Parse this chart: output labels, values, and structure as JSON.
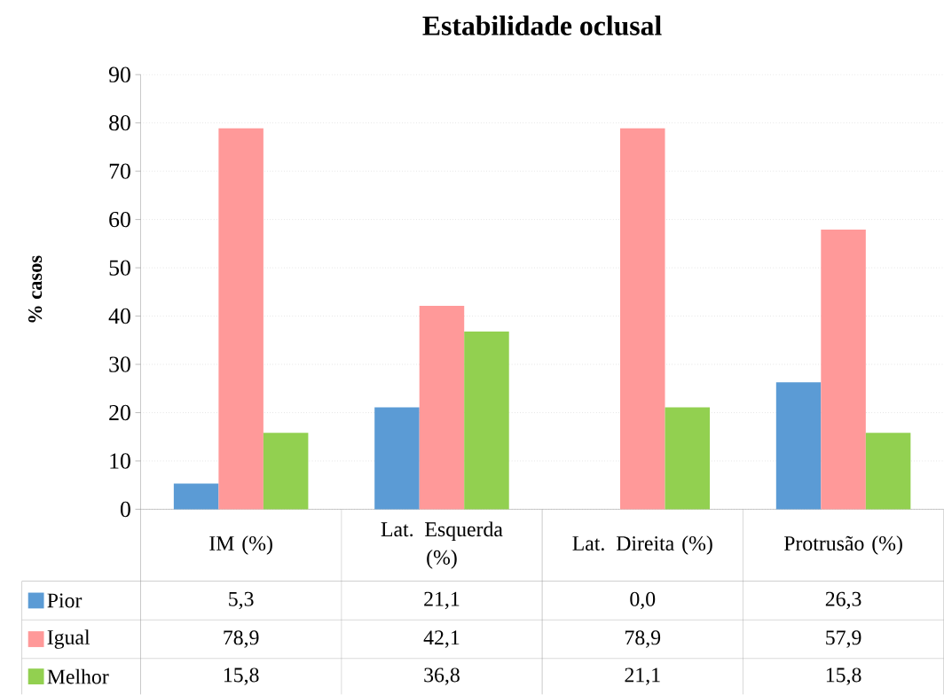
{
  "chart_data": {
    "type": "bar",
    "title": "Estabilidade oclusal",
    "ylabel": "% casos",
    "categories": [
      "IM (%)",
      "Lat. Esquerda (%)",
      "Lat. Direita (%)",
      "Protrusão (%)"
    ],
    "series": [
      {
        "name": "Pior",
        "color": "#5b9bd5",
        "values": [
          5.3,
          21.1,
          0.0,
          26.3
        ],
        "value_labels": [
          "5,3",
          "21,1",
          "0,0",
          "26,3"
        ]
      },
      {
        "name": "Igual",
        "color": "#ff9999",
        "values": [
          78.9,
          42.1,
          78.9,
          57.9
        ],
        "value_labels": [
          "78,9",
          "42,1",
          "78,9",
          "57,9"
        ]
      },
      {
        "name": "Melhor",
        "color": "#92d050",
        "values": [
          15.8,
          36.8,
          21.1,
          15.8
        ],
        "value_labels": [
          "15,8",
          "36,8",
          "21,1",
          "15,8"
        ]
      }
    ],
    "ylim": [
      0,
      90
    ],
    "yticks": [
      0,
      10,
      20,
      30,
      40,
      50,
      60,
      70,
      80,
      90
    ],
    "grid": "y",
    "legend": "bottom"
  }
}
